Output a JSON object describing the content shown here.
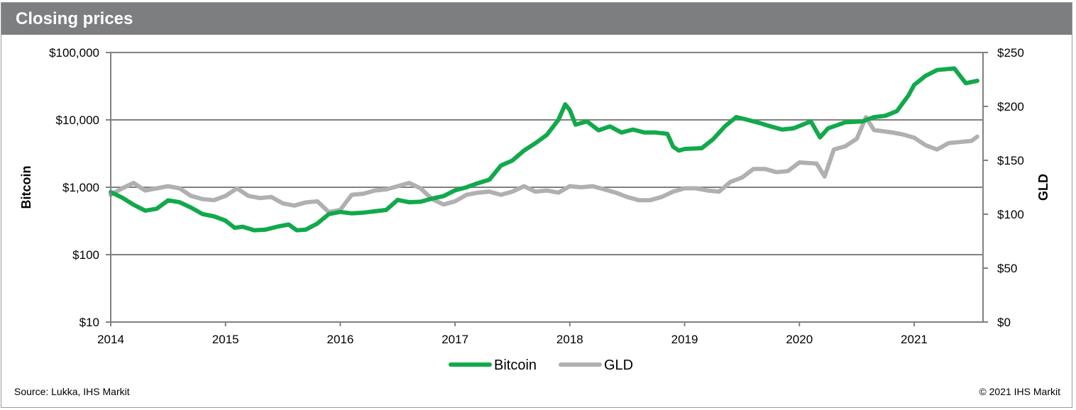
{
  "header": {
    "title": "Closing prices"
  },
  "footer": {
    "source": "Source: Lukka, IHS Markit",
    "copyright": "© 2021 IHS Markit"
  },
  "colors": {
    "bitcoin": "#11a94b",
    "gld": "#b0b0b0",
    "header_bg": "#7d7e7f",
    "grid": "#808080"
  },
  "chart_data": {
    "type": "line",
    "x_axis": {
      "ticks": [
        "2014",
        "2015",
        "2016",
        "2017",
        "2018",
        "2019",
        "2020",
        "2021"
      ],
      "range": [
        2014,
        2021.6
      ]
    },
    "y_left": {
      "label": "Bitcoin",
      "scale": "log",
      "range": [
        10,
        100000
      ],
      "ticks": [
        10,
        100,
        1000,
        10000,
        100000
      ],
      "tick_labels": [
        "$10",
        "$100",
        "$1,000",
        "$10,000",
        "$100,000"
      ]
    },
    "y_right": {
      "label": "GLD",
      "scale": "linear",
      "range": [
        0,
        250
      ],
      "ticks": [
        0,
        50,
        100,
        150,
        200,
        250
      ],
      "tick_labels": [
        "$0",
        "$50",
        "$100",
        "$150",
        "$200",
        "$250"
      ]
    },
    "grid": "horizontal",
    "legend": {
      "position": "bottom-center"
    },
    "series": [
      {
        "name": "Bitcoin",
        "axis": "left",
        "points": [
          [
            2014.0,
            850
          ],
          [
            2014.1,
            700
          ],
          [
            2014.2,
            550
          ],
          [
            2014.3,
            450
          ],
          [
            2014.4,
            480
          ],
          [
            2014.5,
            640
          ],
          [
            2014.6,
            600
          ],
          [
            2014.7,
            500
          ],
          [
            2014.8,
            400
          ],
          [
            2014.9,
            370
          ],
          [
            2015.0,
            320
          ],
          [
            2015.08,
            250
          ],
          [
            2015.15,
            260
          ],
          [
            2015.25,
            230
          ],
          [
            2015.35,
            235
          ],
          [
            2015.45,
            260
          ],
          [
            2015.55,
            280
          ],
          [
            2015.62,
            230
          ],
          [
            2015.7,
            235
          ],
          [
            2015.8,
            290
          ],
          [
            2015.9,
            400
          ],
          [
            2016.0,
            430
          ],
          [
            2016.1,
            410
          ],
          [
            2016.2,
            420
          ],
          [
            2016.3,
            440
          ],
          [
            2016.4,
            460
          ],
          [
            2016.5,
            650
          ],
          [
            2016.6,
            600
          ],
          [
            2016.7,
            610
          ],
          [
            2016.8,
            680
          ],
          [
            2016.9,
            740
          ],
          [
            2017.0,
            900
          ],
          [
            2017.1,
            1000
          ],
          [
            2017.2,
            1150
          ],
          [
            2017.3,
            1300
          ],
          [
            2017.4,
            2100
          ],
          [
            2017.5,
            2500
          ],
          [
            2017.6,
            3500
          ],
          [
            2017.7,
            4500
          ],
          [
            2017.8,
            6000
          ],
          [
            2017.9,
            10000
          ],
          [
            2017.96,
            17000
          ],
          [
            2018.0,
            14000
          ],
          [
            2018.05,
            8500
          ],
          [
            2018.15,
            9500
          ],
          [
            2018.25,
            7000
          ],
          [
            2018.35,
            8000
          ],
          [
            2018.45,
            6500
          ],
          [
            2018.55,
            7200
          ],
          [
            2018.65,
            6500
          ],
          [
            2018.75,
            6500
          ],
          [
            2018.85,
            6200
          ],
          [
            2018.9,
            4000
          ],
          [
            2018.95,
            3500
          ],
          [
            2019.0,
            3700
          ],
          [
            2019.15,
            3800
          ],
          [
            2019.25,
            5200
          ],
          [
            2019.35,
            8000
          ],
          [
            2019.45,
            11000
          ],
          [
            2019.55,
            10000
          ],
          [
            2019.65,
            9000
          ],
          [
            2019.75,
            8000
          ],
          [
            2019.85,
            7200
          ],
          [
            2019.95,
            7500
          ],
          [
            2020.1,
            9500
          ],
          [
            2020.18,
            5500
          ],
          [
            2020.25,
            7500
          ],
          [
            2020.4,
            9200
          ],
          [
            2020.55,
            9500
          ],
          [
            2020.65,
            11000
          ],
          [
            2020.75,
            11500
          ],
          [
            2020.85,
            13500
          ],
          [
            2020.95,
            23000
          ],
          [
            2021.0,
            33000
          ],
          [
            2021.1,
            45000
          ],
          [
            2021.2,
            55000
          ],
          [
            2021.3,
            57000
          ],
          [
            2021.35,
            58000
          ],
          [
            2021.45,
            35000
          ],
          [
            2021.55,
            38000
          ]
        ]
      },
      {
        "name": "GLD",
        "axis": "right",
        "points": [
          [
            2014.0,
            118
          ],
          [
            2014.1,
            124
          ],
          [
            2014.2,
            129
          ],
          [
            2014.3,
            122
          ],
          [
            2014.4,
            124
          ],
          [
            2014.5,
            126
          ],
          [
            2014.6,
            124
          ],
          [
            2014.7,
            117
          ],
          [
            2014.8,
            114
          ],
          [
            2014.9,
            113
          ],
          [
            2015.0,
            117
          ],
          [
            2015.1,
            124
          ],
          [
            2015.2,
            117
          ],
          [
            2015.3,
            115
          ],
          [
            2015.4,
            116
          ],
          [
            2015.5,
            110
          ],
          [
            2015.6,
            108
          ],
          [
            2015.7,
            111
          ],
          [
            2015.8,
            112
          ],
          [
            2015.9,
            102
          ],
          [
            2016.0,
            104
          ],
          [
            2016.1,
            118
          ],
          [
            2016.2,
            119
          ],
          [
            2016.3,
            122
          ],
          [
            2016.4,
            123
          ],
          [
            2016.5,
            126
          ],
          [
            2016.6,
            129
          ],
          [
            2016.7,
            124
          ],
          [
            2016.8,
            114
          ],
          [
            2016.9,
            109
          ],
          [
            2017.0,
            112
          ],
          [
            2017.1,
            118
          ],
          [
            2017.2,
            120
          ],
          [
            2017.3,
            121
          ],
          [
            2017.4,
            118
          ],
          [
            2017.5,
            121
          ],
          [
            2017.6,
            126
          ],
          [
            2017.7,
            121
          ],
          [
            2017.8,
            122
          ],
          [
            2017.9,
            120
          ],
          [
            2018.0,
            126
          ],
          [
            2018.1,
            125
          ],
          [
            2018.2,
            126
          ],
          [
            2018.3,
            123
          ],
          [
            2018.4,
            120
          ],
          [
            2018.5,
            116
          ],
          [
            2018.6,
            113
          ],
          [
            2018.7,
            113
          ],
          [
            2018.8,
            116
          ],
          [
            2018.9,
            121
          ],
          [
            2019.0,
            124
          ],
          [
            2019.1,
            124
          ],
          [
            2019.2,
            122
          ],
          [
            2019.3,
            121
          ],
          [
            2019.4,
            130
          ],
          [
            2019.5,
            134
          ],
          [
            2019.6,
            142
          ],
          [
            2019.7,
            142
          ],
          [
            2019.8,
            139
          ],
          [
            2019.9,
            140
          ],
          [
            2020.0,
            148
          ],
          [
            2020.15,
            147
          ],
          [
            2020.22,
            135
          ],
          [
            2020.3,
            160
          ],
          [
            2020.4,
            163
          ],
          [
            2020.5,
            170
          ],
          [
            2020.58,
            190
          ],
          [
            2020.65,
            178
          ],
          [
            2020.8,
            176
          ],
          [
            2020.9,
            174
          ],
          [
            2021.0,
            171
          ],
          [
            2021.1,
            164
          ],
          [
            2021.2,
            160
          ],
          [
            2021.3,
            166
          ],
          [
            2021.4,
            167
          ],
          [
            2021.5,
            168
          ],
          [
            2021.55,
            172
          ]
        ]
      }
    ]
  }
}
